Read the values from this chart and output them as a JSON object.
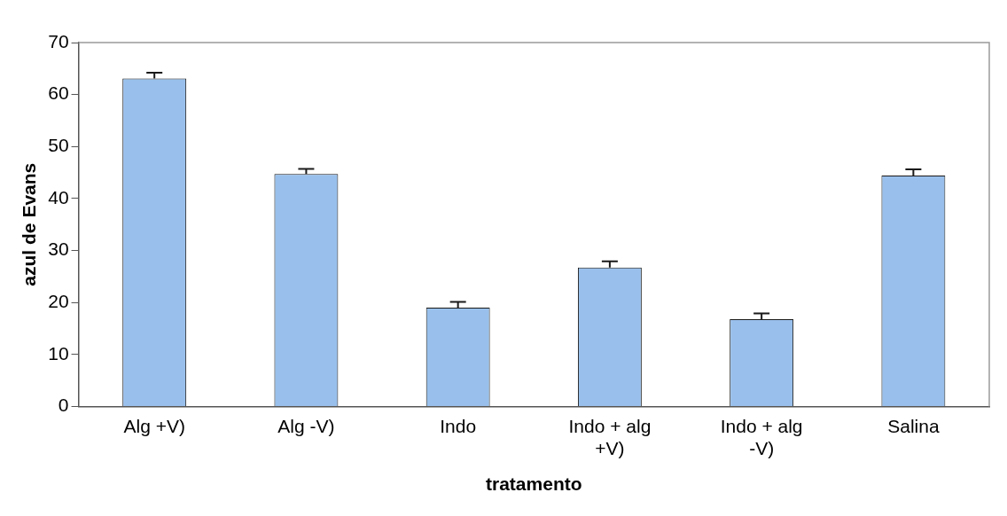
{
  "chart_data": {
    "type": "bar",
    "xlabel": "tratamento",
    "ylabel": "azul de Evans",
    "categories": [
      "Alg +V)",
      "Alg -V)",
      "Indo",
      "Indo + alg +V)",
      "Indo + alg -V)",
      "Salina"
    ],
    "values": [
      63.1,
      44.7,
      19.0,
      26.7,
      16.8,
      44.4
    ],
    "errors": [
      [
        63.1,
        64.2
      ],
      [
        44.7,
        45.7
      ],
      [
        19.0,
        20.1
      ],
      [
        26.7,
        27.9
      ],
      [
        16.8,
        17.9
      ],
      [
        44.4,
        45.6
      ]
    ],
    "color": "#99c0ec",
    "ylim": [
      0,
      70
    ],
    "yticks": [
      0,
      10,
      20,
      30,
      40,
      50,
      60,
      70
    ],
    "grid": false,
    "legend": false
  }
}
